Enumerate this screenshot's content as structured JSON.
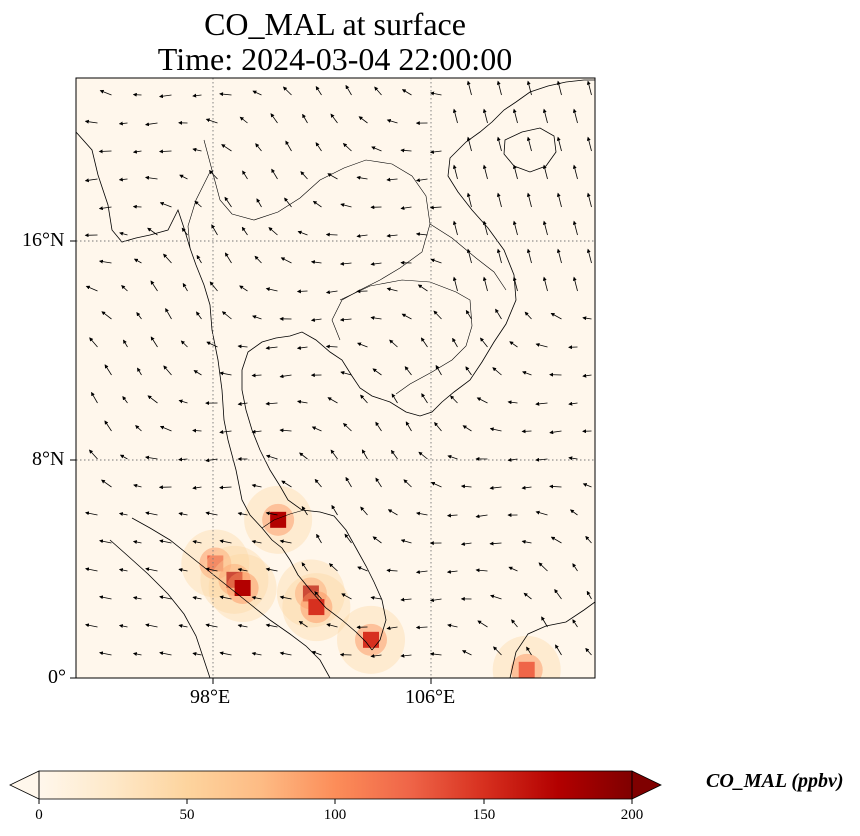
{
  "title": {
    "line1": "CO_MAL at surface",
    "line2": "Time: 2024-03-04 22:00:00"
  },
  "map": {
    "lat_range_deg": [
      0,
      22
    ],
    "lon_range_deg": [
      93,
      112
    ],
    "lat_ticks": [
      "16°N",
      "8°N",
      "0°"
    ],
    "lon_ticks": [
      "98°E",
      "106°E"
    ],
    "gridlines": "dotted",
    "features": [
      "coastlines",
      "country borders",
      "wind vectors",
      "CO concentration shading"
    ],
    "hotspots": [
      {
        "lat": 5.8,
        "lon": 100.4,
        "intensity": 165
      },
      {
        "lat": 4.2,
        "lon": 98.1,
        "intensity": 120
      },
      {
        "lat": 3.6,
        "lon": 98.8,
        "intensity": 185
      },
      {
        "lat": 3.3,
        "lon": 99.1,
        "intensity": 175
      },
      {
        "lat": 3.1,
        "lon": 101.6,
        "intensity": 180
      },
      {
        "lat": 2.6,
        "lon": 101.8,
        "intensity": 150
      },
      {
        "lat": 1.4,
        "lon": 103.8,
        "intensity": 150
      },
      {
        "lat": 0.3,
        "lon": 109.5,
        "intensity": 130
      }
    ]
  },
  "colorbar": {
    "label": "CO_MAL (ppbv)",
    "ticks": [
      "0",
      "50",
      "100",
      "150",
      "200"
    ],
    "range": [
      0,
      200
    ],
    "colormap": "OrRd",
    "colors": [
      "#fff7ec",
      "#fee8c8",
      "#fdd49e",
      "#fdbb84",
      "#fc8d59",
      "#ef6548",
      "#d7301f",
      "#b30000",
      "#7f0000"
    ]
  }
}
